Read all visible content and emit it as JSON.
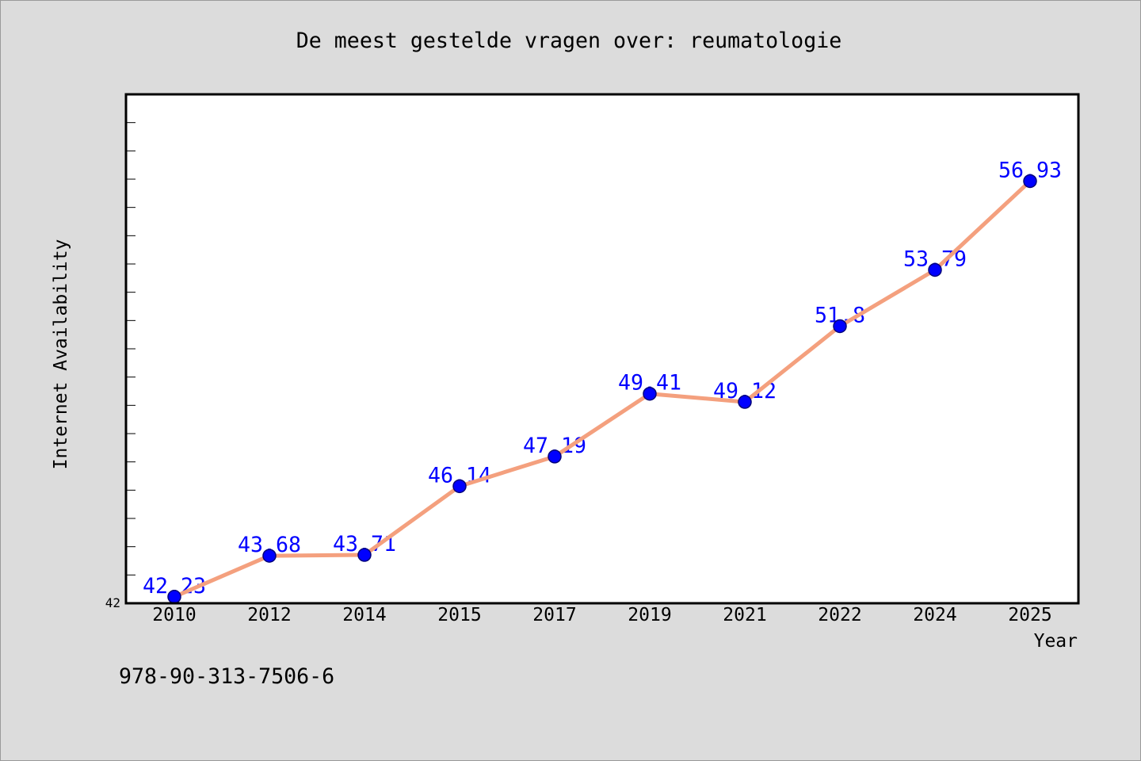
{
  "chart_data": {
    "type": "line",
    "title": "De meest gestelde vragen over: reumatologie",
    "xlabel": "Year",
    "ylabel": "Internet Availability",
    "categories": [
      "2010",
      "2012",
      "2014",
      "2015",
      "2017",
      "2019",
      "2021",
      "2022",
      "2024",
      "2025"
    ],
    "values": [
      42.23,
      43.68,
      43.71,
      46.14,
      47.19,
      49.41,
      49.12,
      51.8,
      53.79,
      56.93
    ],
    "ylim": [
      42,
      60
    ],
    "y_tick_step": 1,
    "y_tick_labels": [
      "42"
    ],
    "data_labels": true,
    "grid": false,
    "colors": {
      "background": "#dcdcdc",
      "plot_background": "#ffffff",
      "line": "#f4a07e",
      "marker": "#0000ff",
      "marker_edge": "#00007a",
      "data_label": "#0000ff"
    }
  },
  "footer": "978-90-313-7506-6"
}
